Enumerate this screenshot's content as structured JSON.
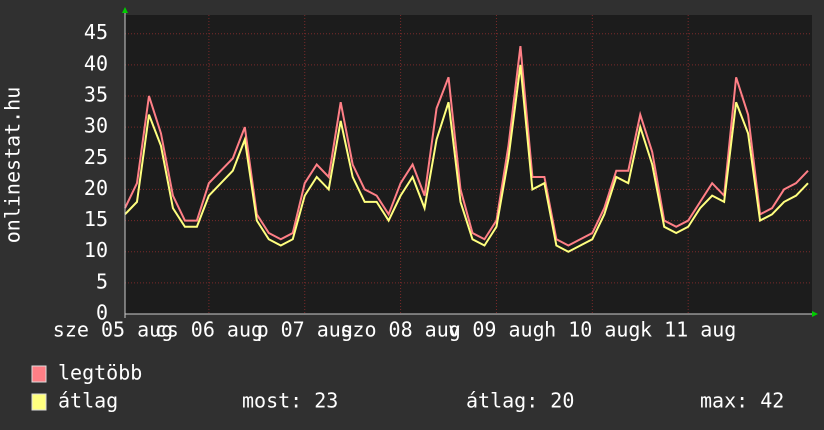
{
  "chart_data": {
    "type": "line",
    "ylabel": "onlinestat.hu",
    "x": [
      0,
      3,
      6,
      9,
      12,
      15,
      18,
      21,
      24,
      27,
      30,
      33,
      36,
      39,
      42,
      45,
      48,
      51,
      54,
      57,
      60,
      63,
      66,
      69,
      72,
      75,
      78,
      81,
      84,
      87,
      90,
      93,
      96,
      99,
      102,
      105,
      108,
      111,
      114,
      117,
      120,
      123,
      126,
      129,
      132,
      135,
      138,
      141,
      144,
      147,
      150,
      153,
      156,
      159,
      162,
      165,
      168,
      171
    ],
    "xlim": [
      0,
      172
    ],
    "xticks": [
      {
        "value": -3,
        "label": "sze 05 aug"
      },
      {
        "value": 21,
        "label": "cs 06 aug"
      },
      {
        "value": 45,
        "label": "p 07 aug"
      },
      {
        "value": 69,
        "label": "szo 08 aug"
      },
      {
        "value": 93,
        "label": "v 09 aug"
      },
      {
        "value": 117,
        "label": "h 10 aug"
      },
      {
        "value": 141,
        "label": "k 11 aug"
      }
    ],
    "ylim": [
      0,
      48
    ],
    "yticks": [
      0,
      5,
      10,
      15,
      20,
      25,
      30,
      35,
      40,
      45
    ],
    "grid": true,
    "series": [
      {
        "name": "legtöbb",
        "color": "#ff7f86",
        "values": [
          17,
          21,
          35,
          29,
          19,
          15,
          15,
          21,
          23,
          25,
          30,
          16,
          13,
          12,
          13,
          21,
          24,
          22,
          34,
          24,
          20,
          19,
          16,
          21,
          24,
          19,
          33,
          38,
          20,
          13,
          12,
          15,
          27,
          43,
          22,
          22,
          12,
          11,
          12,
          13,
          17,
          23,
          23,
          32,
          26,
          15,
          14,
          15,
          18,
          21,
          19,
          38,
          32,
          16,
          17,
          20,
          21,
          23
        ]
      },
      {
        "name": "átlag",
        "color": "#ffff7f",
        "values": [
          16,
          18,
          32,
          27,
          17,
          14,
          14,
          19,
          21,
          23,
          28,
          15,
          12,
          11,
          12,
          19,
          22,
          20,
          31,
          22,
          18,
          18,
          15,
          19,
          22,
          17,
          28,
          34,
          18,
          12,
          11,
          14,
          25,
          40,
          20,
          21,
          11,
          10,
          11,
          12,
          16,
          22,
          21,
          30,
          24,
          14,
          13,
          14,
          17,
          19,
          18,
          34,
          29,
          15,
          16,
          18,
          19,
          21
        ]
      }
    ],
    "stats": [
      "most: 23",
      "átlag: 20",
      "max: 42"
    ]
  }
}
